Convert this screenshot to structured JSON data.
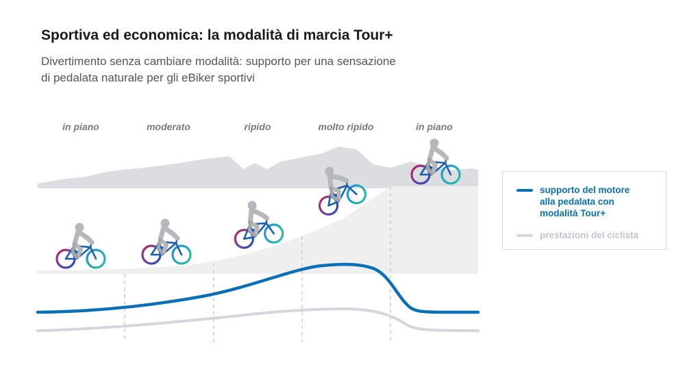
{
  "title": "Sportiva ed economica: la modalità di marcia Tour+",
  "subtitle_lines": [
    "Divertimento senza cambiare modalità: supporto per una sensazione",
    "di pedalata naturale per gli eBiker sportivi"
  ],
  "terrains": [
    "in piano",
    "moderato",
    "ripido",
    "molto ripido",
    "in piano"
  ],
  "legend": {
    "motor": {
      "label_lines": [
        "supporto del motore",
        "alla pedalata con",
        "modalità Tour+"
      ],
      "color": "#0a6fb6"
    },
    "rider": {
      "label": "prestazioni del ciclista",
      "color": "#d4d6db"
    }
  },
  "colors": {
    "mountain_back": "#dcdde0",
    "slope_fill": "#efefef",
    "divider": "#c9cbcf",
    "rider_gray": "#b5b7bb"
  }
}
